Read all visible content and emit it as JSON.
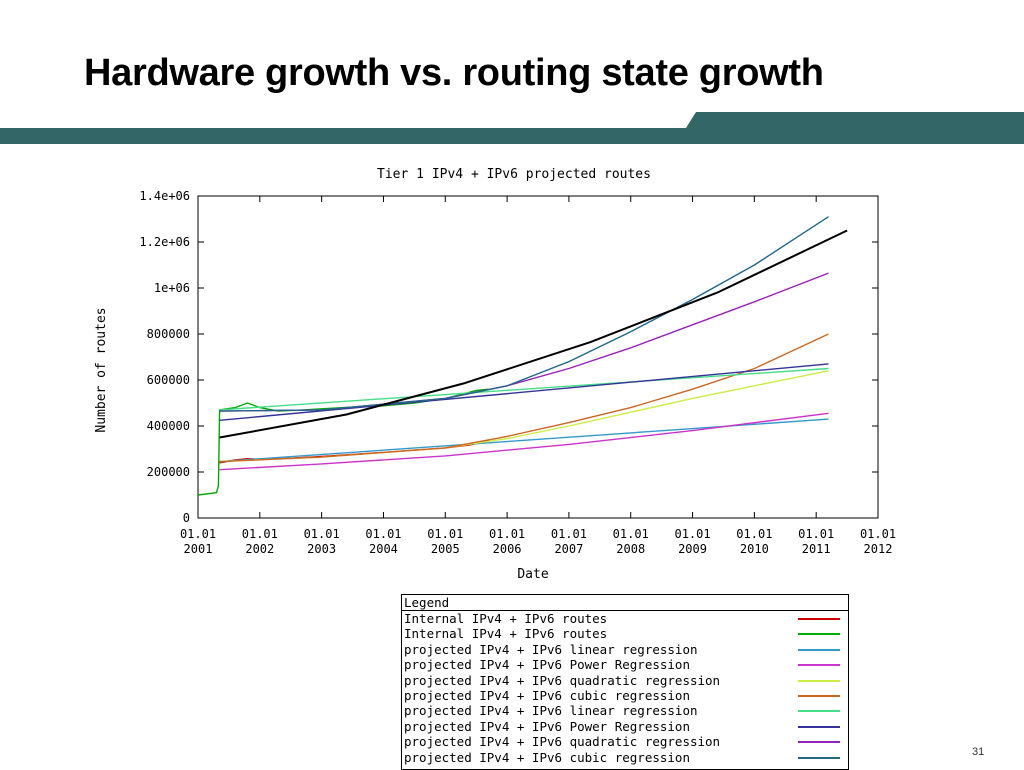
{
  "slide": {
    "title": "Hardware growth vs. routing state growth",
    "page_number": "31",
    "bar_color": "#336666"
  },
  "legend": {
    "header": "Legend",
    "entries": [
      {
        "label": "Internal IPv4 + IPv6 routes",
        "color": "#cc0000"
      },
      {
        "label": "Internal IPv4 + IPv6 routes",
        "color": "#00aa00"
      },
      {
        "label": "projected IPv4 + IPv6 linear regression",
        "color": "#3399cc"
      },
      {
        "label": "projected IPv4 + IPv6 Power Regression",
        "color": "#cc33cc"
      },
      {
        "label": "projected IPv4 + IPv6 quadratic regression",
        "color": "#ccee44"
      },
      {
        "label": "projected IPv4 + IPv6 cubic regression",
        "color": "#cc6622"
      },
      {
        "label": "projected IPv4 + IPv6 linear regression",
        "color": "#44dd88"
      },
      {
        "label": "projected IPv4 + IPv6 Power Regression",
        "color": "#333399"
      },
      {
        "label": "projected IPv4 + IPv6 quadratic regression",
        "color": "#9922bb"
      },
      {
        "label": "projected IPv4 + IPv6 cubic regression",
        "color": "#226688"
      }
    ]
  },
  "chart_data": {
    "type": "line",
    "title": "Tier 1 IPv4 + IPv6 projected routes",
    "xlabel": "Date",
    "ylabel": "Number of routes",
    "xlim": [
      2001.0,
      2012.0
    ],
    "ylim": [
      0,
      1400000
    ],
    "grid": false,
    "x_ticks": [
      {
        "value": 2001,
        "label": [
          "01.01",
          "2001"
        ]
      },
      {
        "value": 2002,
        "label": [
          "01.01",
          "2002"
        ]
      },
      {
        "value": 2003,
        "label": [
          "01.01",
          "2003"
        ]
      },
      {
        "value": 2004,
        "label": [
          "01.01",
          "2004"
        ]
      },
      {
        "value": 2005,
        "label": [
          "01.01",
          "2005"
        ]
      },
      {
        "value": 2006,
        "label": [
          "01.01",
          "2006"
        ]
      },
      {
        "value": 2007,
        "label": [
          "01.01",
          "2007"
        ]
      },
      {
        "value": 2008,
        "label": [
          "01.01",
          "2008"
        ]
      },
      {
        "value": 2009,
        "label": [
          "01.01",
          "2009"
        ]
      },
      {
        "value": 2010,
        "label": [
          "01.01",
          "2010"
        ]
      },
      {
        "value": 2011,
        "label": [
          "01.01",
          "2011"
        ]
      },
      {
        "value": 2012,
        "label": [
          "01.01",
          "2012"
        ]
      }
    ],
    "y_ticks": [
      {
        "value": 0,
        "label": "0"
      },
      {
        "value": 200000,
        "label": "200000"
      },
      {
        "value": 400000,
        "label": "400000"
      },
      {
        "value": 600000,
        "label": "600000"
      },
      {
        "value": 800000,
        "label": "800000"
      },
      {
        "value": 1000000,
        "label": "1e+06"
      },
      {
        "value": 1200000,
        "label": "1.2e+06"
      },
      {
        "value": 1400000,
        "label": "1.4e+06"
      }
    ],
    "series": [
      {
        "name": "Internal IPv4 + IPv6 routes",
        "color": "#cc0000",
        "x": [
          2001.35,
          2001.6,
          2001.8,
          2002.0,
          2002.5,
          2003.0,
          2003.5,
          2004.0,
          2004.5,
          2005.0,
          2005.4,
          2005.7
        ],
        "values": [
          240000,
          252000,
          258000,
          255000,
          260000,
          268000,
          276000,
          285000,
          295000,
          305000,
          318000,
          335000
        ]
      },
      {
        "name": "Internal IPv4 + IPv6 routes",
        "color": "#00aa00",
        "x": [
          2001.0,
          2001.3,
          2001.33,
          2001.35,
          2001.6,
          2001.8,
          2002.0,
          2002.3,
          2002.7,
          2003.0,
          2003.5,
          2004.0,
          2004.5,
          2005.0,
          2005.3,
          2005.5,
          2005.7
        ],
        "values": [
          100000,
          110000,
          140000,
          470000,
          480000,
          500000,
          480000,
          465000,
          470000,
          475000,
          482000,
          488000,
          500000,
          520000,
          540000,
          555000,
          560000
        ]
      },
      {
        "name": "projected IPv4 + IPv6 linear regression",
        "color": "#3399cc",
        "x": [
          2001.35,
          2011.2
        ],
        "values": [
          245000,
          430000
        ]
      },
      {
        "name": "projected IPv4 + IPv6 Power Regression",
        "color": "#cc33cc",
        "x": [
          2001.35,
          2003.0,
          2005.0,
          2007.0,
          2009.0,
          2011.2
        ],
        "values": [
          210000,
          235000,
          270000,
          320000,
          380000,
          455000
        ]
      },
      {
        "name": "projected IPv4 + IPv6 quadratic regression",
        "color": "#ccee44",
        "x": [
          2001.35,
          2003.0,
          2005.0,
          2006.0,
          2007.0,
          2008.0,
          2009.0,
          2010.0,
          2011.2
        ],
        "values": [
          245000,
          265000,
          305000,
          345000,
          400000,
          460000,
          520000,
          575000,
          640000
        ]
      },
      {
        "name": "projected IPv4 + IPv6 cubic regression",
        "color": "#cc6622",
        "x": [
          2001.35,
          2003.0,
          2005.0,
          2006.0,
          2007.0,
          2008.0,
          2009.0,
          2010.0,
          2011.2
        ],
        "values": [
          245000,
          265000,
          305000,
          355000,
          415000,
          480000,
          560000,
          650000,
          800000
        ]
      },
      {
        "name": "projected IPv4 + IPv6 linear regression",
        "color": "#44dd88",
        "x": [
          2001.35,
          2011.2
        ],
        "values": [
          470000,
          650000
        ]
      },
      {
        "name": "projected IPv4 + IPv6 Power Regression",
        "color": "#333399",
        "x": [
          2001.35,
          2011.2
        ],
        "values": [
          425000,
          670000
        ]
      },
      {
        "name": "projected IPv4 + IPv6 quadratic regression",
        "color": "#9922bb",
        "x": [
          2001.35,
          2003.0,
          2005.0,
          2006.0,
          2007.0,
          2008.0,
          2009.0,
          2010.0,
          2011.2
        ],
        "values": [
          465000,
          470000,
          520000,
          575000,
          650000,
          740000,
          840000,
          940000,
          1065000
        ]
      },
      {
        "name": "projected IPv4 + IPv6 cubic regression",
        "color": "#226688",
        "x": [
          2001.35,
          2003.0,
          2005.0,
          2006.0,
          2007.0,
          2008.0,
          2009.0,
          2010.0,
          2011.2
        ],
        "values": [
          465000,
          470000,
          520000,
          575000,
          680000,
          810000,
          950000,
          1100000,
          1310000
        ]
      },
      {
        "color": "#000000",
        "x": [
          2001.35,
          2003.4,
          2005.3,
          2007.35,
          2009.4,
          2011.5
        ],
        "values": [
          350000,
          450000,
          585000,
          765000,
          980000,
          1250000
        ]
      }
    ]
  }
}
